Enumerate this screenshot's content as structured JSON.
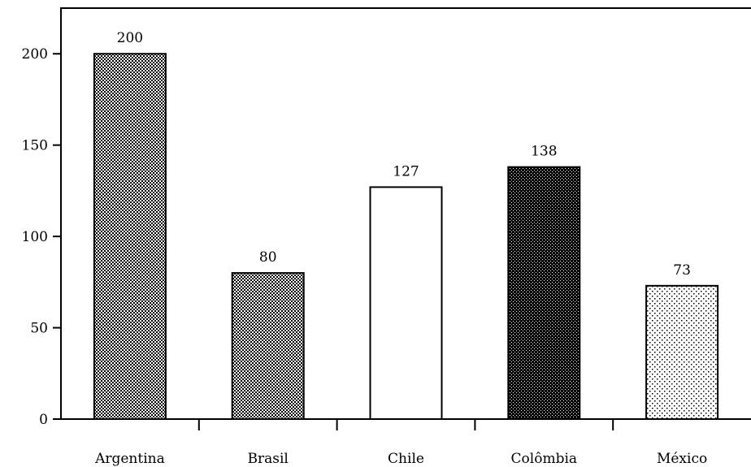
{
  "chart_data": {
    "type": "bar",
    "title": "",
    "xlabel": "",
    "ylabel": "",
    "categories": [
      "Argentina",
      "Brasil",
      "Chile",
      "Colômbia",
      "México"
    ],
    "values": [
      200,
      80,
      127,
      138,
      73
    ],
    "data_labels": [
      "200",
      "80",
      "127",
      "138",
      "73"
    ],
    "ylim": [
      0,
      225
    ],
    "yticks": [
      0,
      50,
      100,
      150,
      200
    ],
    "ytick_labels": [
      "0",
      "50",
      "100",
      "150",
      "200"
    ],
    "grid": false,
    "legend": "none",
    "bar_fills": [
      "dense-checker",
      "light-checker",
      "white",
      "dark-checker",
      "dots"
    ]
  }
}
